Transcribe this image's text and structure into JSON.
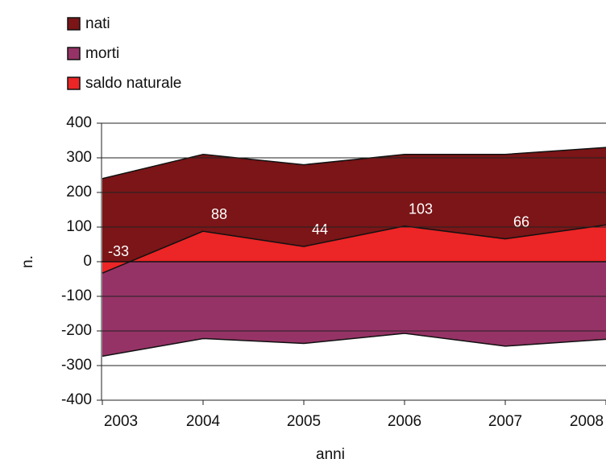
{
  "chart_data": {
    "type": "area",
    "xlabel": "anni",
    "ylabel": "n.",
    "categories": [
      "2003",
      "2004",
      "2005",
      "2006",
      "2007",
      "2008"
    ],
    "series": [
      {
        "name": "nati",
        "color": "#7b1517",
        "values": [
          240,
          310,
          280,
          310,
          310,
          330
        ]
      },
      {
        "name": "morti",
        "color": "#963366",
        "values": [
          -273,
          -222,
          -236,
          -207,
          -244,
          -224
        ]
      },
      {
        "name": "saldo naturale",
        "color": "#ec2526",
        "values": [
          -33,
          88,
          44,
          103,
          66,
          106
        ]
      }
    ],
    "ylim": [
      -400,
      400
    ],
    "yticks": [
      -400,
      -300,
      -200,
      -100,
      0,
      100,
      200,
      300,
      400
    ],
    "grid": true,
    "legend": "top-left"
  }
}
